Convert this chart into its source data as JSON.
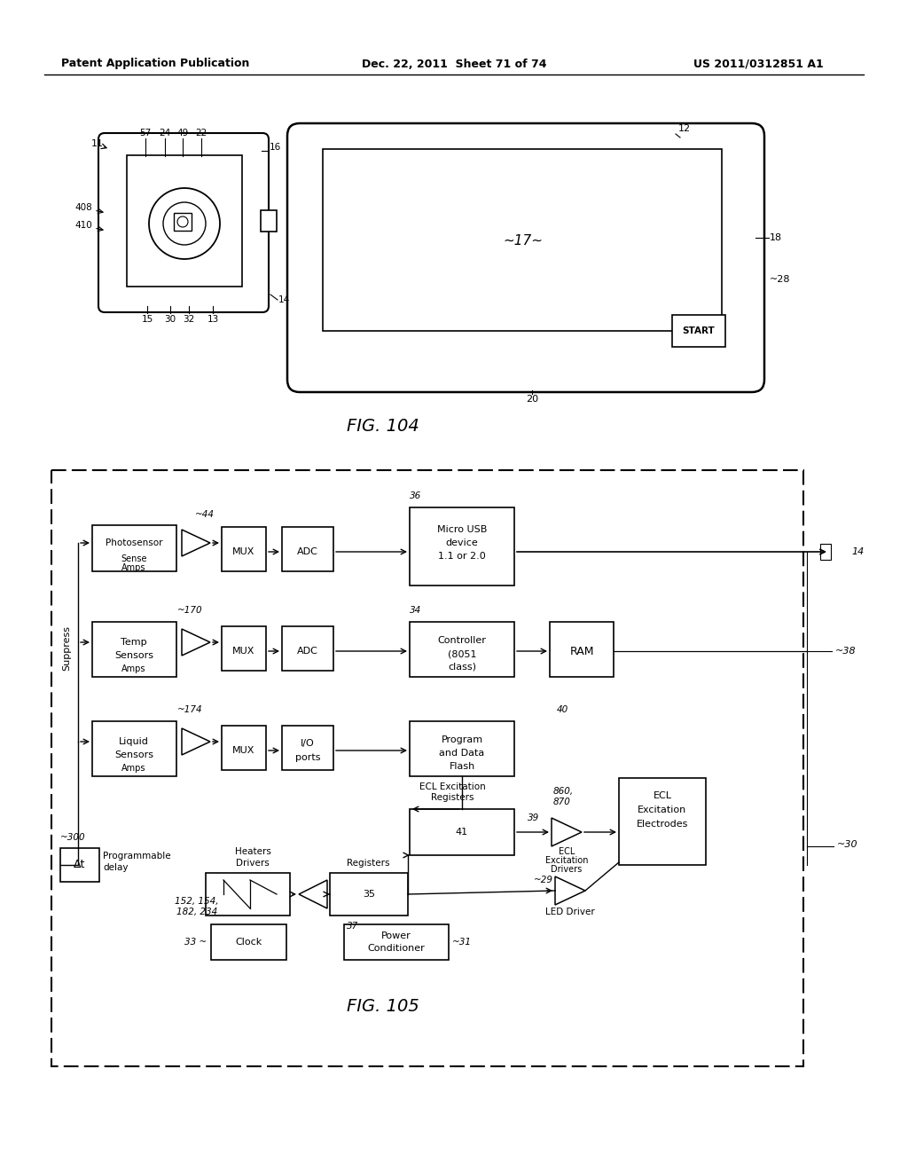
{
  "header_left": "Patent Application Publication",
  "header_mid": "Dec. 22, 2011  Sheet 71 of 74",
  "header_right": "US 2011/0312851 A1",
  "fig104_label": "FIG. 104",
  "fig105_label": "FIG. 105",
  "bg_color": "#ffffff",
  "lc": "#000000",
  "tc": "#000000"
}
